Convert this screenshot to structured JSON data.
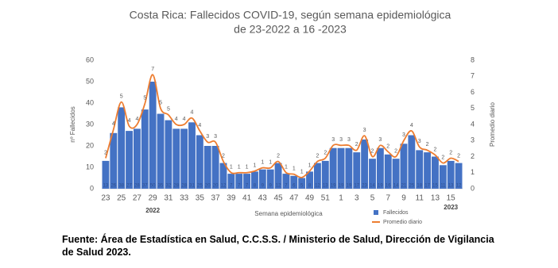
{
  "chart_data": {
    "type": "bar-line",
    "title": "Costa Rica: Fallecidos COVID-19, según semana epidemiológica",
    "subtitle": "de 23-2022 a 16 -2023",
    "x_label": "Semana epidemiológica",
    "y_label": "nº Fallecidos",
    "y2_label": "Promedio diario",
    "annotations": [
      "2022",
      "2023"
    ],
    "categories": [
      "23",
      null,
      "25",
      null,
      "27",
      null,
      "29",
      null,
      "31",
      null,
      "33",
      null,
      "35",
      null,
      "37",
      null,
      "39",
      null,
      "41",
      null,
      "43",
      null,
      "45",
      null,
      "47",
      null,
      "49",
      null,
      "51",
      null,
      "1",
      null,
      "3",
      null,
      "5",
      null,
      "7",
      null,
      "9",
      null,
      "11",
      null,
      "13",
      null,
      "15",
      null
    ],
    "series": [
      {
        "name": "Fallecidos",
        "type": "bar",
        "color": "#4472c4",
        "values": [
          13,
          26,
          38,
          27,
          28,
          37,
          50,
          35,
          32,
          28,
          28,
          31,
          25,
          20,
          20,
          12,
          7,
          7,
          7,
          8,
          9,
          9,
          12,
          7,
          6,
          5,
          8,
          12,
          13,
          19,
          19,
          19,
          17,
          23,
          14,
          19,
          16,
          14,
          21,
          25,
          18,
          17,
          15,
          11,
          13,
          12
        ]
      },
      {
        "name": "Promedio diario",
        "type": "line",
        "color": "#ed7d31",
        "axis": "y2",
        "values": [
          1.9,
          3.7,
          5.4,
          3.9,
          4.0,
          5.3,
          7.1,
          5.0,
          4.6,
          4.0,
          4.0,
          4.4,
          3.6,
          2.9,
          2.9,
          1.7,
          1.0,
          1.0,
          1.0,
          1.1,
          1.3,
          1.3,
          1.7,
          1.0,
          0.9,
          0.7,
          1.1,
          1.7,
          1.9,
          2.7,
          2.7,
          2.7,
          2.4,
          3.3,
          2.0,
          2.7,
          2.3,
          2.0,
          3.0,
          3.6,
          2.6,
          2.4,
          2.1,
          1.6,
          1.9,
          1.7
        ],
        "value_labels": [
          "2",
          "4",
          "5",
          "4",
          "4",
          "5",
          "7",
          "5",
          "5",
          "4",
          "4",
          "4",
          "4",
          "3",
          "3",
          "2",
          "1",
          "1",
          "1",
          "1",
          "1",
          "1",
          "2",
          "1",
          "1",
          "1",
          "1",
          "2",
          "2",
          "3",
          "3",
          "3",
          "2",
          "3",
          "2",
          "3",
          "2",
          "2",
          "3",
          "4",
          "3",
          "2",
          "2",
          "2",
          "2",
          "2"
        ]
      }
    ],
    "ylim": [
      0,
      60
    ],
    "yticks": [
      0,
      10,
      20,
      30,
      40,
      50,
      60
    ],
    "y2lim": [
      0,
      8
    ],
    "y2ticks": [
      0,
      1,
      2,
      3,
      4,
      5,
      6,
      7,
      8
    ],
    "legend": "bottom-right"
  },
  "source": "Fuente: Área de Estadística en Salud, C.C.S.S. / Ministerio de Salud, Dirección de Vigilancia de Salud 2023."
}
